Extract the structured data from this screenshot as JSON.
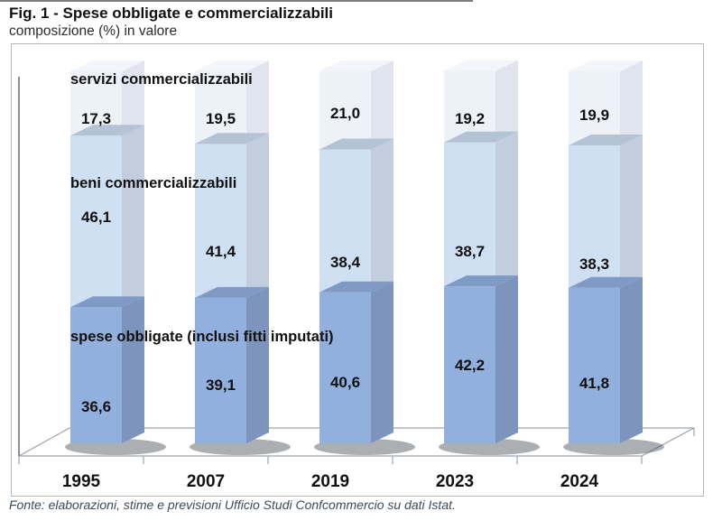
{
  "header": {
    "title": "Fig. 1 - Spese obbligate e commercializzabili",
    "subtitle": "composizione (%) in valore"
  },
  "footer": {
    "source": "Fonte: elaborazioni, stime e previsioni Ufficio Studi Confcommercio su dati Istat."
  },
  "chart_data": {
    "type": "bar",
    "variant": "3d-stacked-column-100-percent",
    "title": "Fig. 1 - Spese obbligate e commercializzabili",
    "subtitle": "composizione (%) in valore",
    "unit": "%",
    "ylim": [
      0,
      100
    ],
    "grid": false,
    "legend": "inline-series-labels",
    "categories": [
      "1995",
      "2007",
      "2019",
      "2023",
      "2024"
    ],
    "series": [
      {
        "name": "spese obbligate (inclusi fitti imputati)",
        "values": [
          36.6,
          39.1,
          40.6,
          42.2,
          41.8
        ],
        "value_labels": [
          "36,6",
          "39,1",
          "40,6",
          "42,2",
          "41,8"
        ],
        "color_front": "#92B0DE",
        "color_side": "#7D95BC",
        "color_top": "#7F9AC4"
      },
      {
        "name": "beni commercializzabili",
        "values": [
          46.1,
          41.4,
          38.4,
          38.7,
          38.3
        ],
        "value_labels": [
          "46,1",
          "41,4",
          "38,4",
          "38,7",
          "38,3"
        ],
        "color_front": "#CFE0F2",
        "color_side": "#C2CEDE",
        "color_top": "#B4C2D6"
      },
      {
        "name": "servizi commercializzabili",
        "values": [
          17.3,
          19.5,
          21.0,
          19.2,
          19.9
        ],
        "value_labels": [
          "17,3",
          "19,5",
          "21,0",
          "19,2",
          "19,9"
        ],
        "color_front": "#EDF1F8",
        "color_side": "#DFE4EE",
        "color_top": "#F3F5FA"
      }
    ],
    "colors": {
      "label_text": "#111111",
      "axis_line": "#6f737a",
      "floor_line": "#9ca3ab"
    }
  }
}
